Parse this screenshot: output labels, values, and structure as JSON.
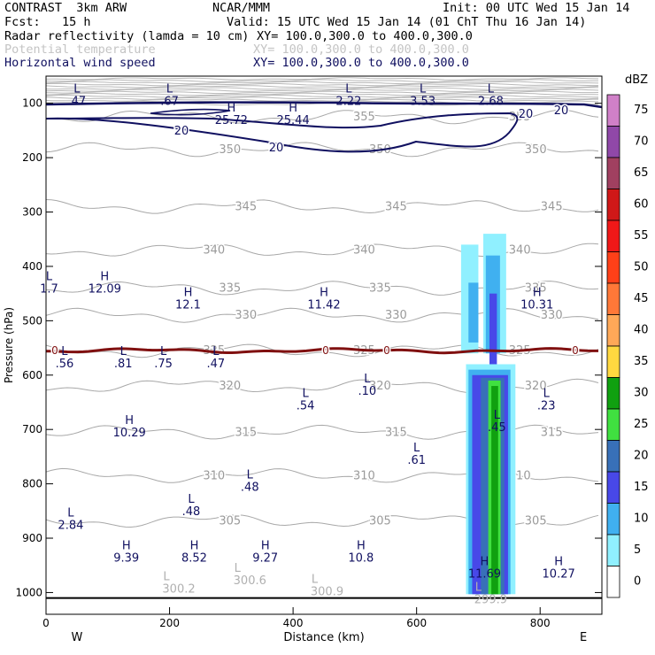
{
  "header": {
    "model": "CONTRAST  3km ARW",
    "org": "NCAR/MMM",
    "init": "Init: 00 UTC Wed 15 Jan 14",
    "fcst": "Fcst:   15 h",
    "valid": "Valid: 15 UTC Wed 15 Jan 14 (01 ChT Thu 16 Jan 14)",
    "var1_name": "Radar reflectivity (lamda = 10 cm)",
    "var1_xy": "XY= 100.0,300.0 to 400.0,300.0",
    "var2_name": "Potential temperature",
    "var2_xy": "XY= 100.0,300.0 to 400.0,300.0",
    "var3_name": "Horizontal wind speed",
    "var3_xy": "XY= 100.0,300.0 to 400.0,300.0"
  },
  "chart_data": {
    "type": "cross-section",
    "xlabel": "Distance (km)",
    "ylabel": "Pressure (hPa)",
    "xlim": [
      0,
      900
    ],
    "ylim": [
      1040,
      50
    ],
    "x_ticks": [
      0,
      200,
      400,
      600,
      800
    ],
    "y_ticks": [
      100,
      200,
      300,
      400,
      500,
      600,
      700,
      800,
      900,
      1000
    ],
    "x_left_label": "W",
    "x_right_label": "E",
    "colorbar": {
      "unit": "dBZ",
      "levels": [
        "75",
        "70",
        "65",
        "60",
        "55",
        "50",
        "45",
        "40",
        "35",
        "30",
        "25",
        "20",
        "15",
        "10",
        "5",
        "0"
      ],
      "colors": [
        "#d080c8",
        "#9048a8",
        "#a04060",
        "#d01818",
        "#f01818",
        "#ff4018",
        "#ff7838",
        "#ffa858",
        "#ffd840",
        "#10a010",
        "#40e040",
        "#3870b8",
        "#4848e8",
        "#40b0f0",
        "#90f0ff",
        "#ffffff"
      ]
    },
    "theta_contours": [
      {
        "label": "355",
        "p": 125
      },
      {
        "label": "350",
        "p": 185
      },
      {
        "label": "345",
        "p": 290
      },
      {
        "label": "340",
        "p": 370
      },
      {
        "label": "335",
        "p": 440
      },
      {
        "label": "330",
        "p": 490
      },
      {
        "label": "325",
        "p": 555
      },
      {
        "label": "320",
        "p": 620
      },
      {
        "label": "315",
        "p": 705
      },
      {
        "label": "310",
        "p": 785
      },
      {
        "label": "305",
        "p": 868
      }
    ],
    "wind_contour_labels": [
      "20",
      "20",
      "20",
      "20"
    ],
    "freezing_label": "0",
    "highs_lows": [
      {
        "t": "L",
        "v": ".47",
        "x": 50,
        "p": 80
      },
      {
        "t": "L",
        "v": ".67",
        "x": 200,
        "p": 80
      },
      {
        "t": "L",
        "v": "2.22",
        "x": 490,
        "p": 80
      },
      {
        "t": "L",
        "v": "3.53",
        "x": 610,
        "p": 80
      },
      {
        "t": "L",
        "v": "2.68",
        "x": 720,
        "p": 80
      },
      {
        "t": "H",
        "v": "25.72",
        "x": 300,
        "p": 115
      },
      {
        "t": "H",
        "v": "25.44",
        "x": 400,
        "p": 115
      },
      {
        "t": "L",
        "v": "1.7",
        "x": 5,
        "p": 425
      },
      {
        "t": "H",
        "v": "12.09",
        "x": 95,
        "p": 425
      },
      {
        "t": "H",
        "v": "12.1",
        "x": 230,
        "p": 455
      },
      {
        "t": "H",
        "v": "11.42",
        "x": 450,
        "p": 455
      },
      {
        "t": "H",
        "v": "10.31",
        "x": 795,
        "p": 455
      },
      {
        "t": "L",
        "v": ".56",
        "x": 30,
        "p": 563
      },
      {
        "t": "L",
        "v": ".81",
        "x": 125,
        "p": 563
      },
      {
        "t": "L",
        "v": ".75",
        "x": 190,
        "p": 563
      },
      {
        "t": "L",
        "v": ".47",
        "x": 275,
        "p": 563
      },
      {
        "t": "L",
        "v": ".10",
        "x": 520,
        "p": 613
      },
      {
        "t": "L",
        "v": ".54",
        "x": 420,
        "p": 640
      },
      {
        "t": "L",
        "v": ".23",
        "x": 810,
        "p": 640
      },
      {
        "t": "L",
        "v": ".45",
        "x": 730,
        "p": 680
      },
      {
        "t": "H",
        "v": "10.29",
        "x": 135,
        "p": 690
      },
      {
        "t": "L",
        "v": ".61",
        "x": 600,
        "p": 740
      },
      {
        "t": "L",
        "v": ".48",
        "x": 330,
        "p": 790
      },
      {
        "t": "L",
        "v": ".48",
        "x": 235,
        "p": 835
      },
      {
        "t": "L",
        "v": "2.84",
        "x": 40,
        "p": 860
      },
      {
        "t": "H",
        "v": "9.39",
        "x": 130,
        "p": 920
      },
      {
        "t": "H",
        "v": "8.52",
        "x": 240,
        "p": 920
      },
      {
        "t": "H",
        "v": "9.27",
        "x": 355,
        "p": 920
      },
      {
        "t": "H",
        "v": "10.8",
        "x": 510,
        "p": 920
      },
      {
        "t": "H",
        "v": "11.69",
        "x": 710,
        "p": 950
      },
      {
        "t": "H",
        "v": "10.27",
        "x": 830,
        "p": 950
      }
    ],
    "theta_extrema": [
      {
        "t": "L",
        "v": "300.2",
        "x": 215,
        "p": 990
      },
      {
        "t": "L",
        "v": "300.6",
        "x": 330,
        "p": 975
      },
      {
        "t": "L",
        "v": "300.9",
        "x": 455,
        "p": 995
      },
      {
        "t": "L",
        "v": "299.9",
        "x": 720,
        "p": 1010
      }
    ]
  }
}
